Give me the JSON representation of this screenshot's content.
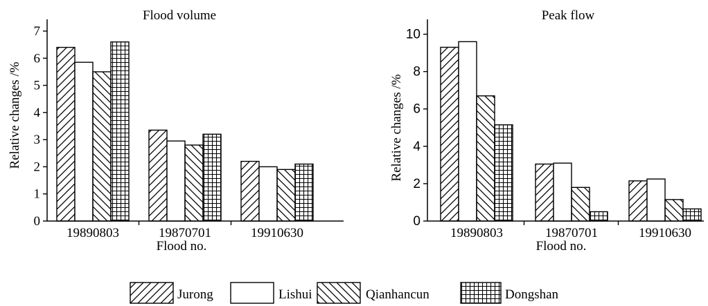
{
  "chart_data": [
    {
      "type": "bar",
      "title": "Flood volume",
      "xlabel": "Flood no.",
      "ylabel": "Relative changes /%",
      "categories": [
        "19890803",
        "19870701",
        "19910630"
      ],
      "ylim": [
        0,
        7
      ],
      "yticks": [
        "0",
        "1",
        "2",
        "3",
        "4",
        "5",
        "6",
        "7"
      ],
      "series": [
        {
          "name": "Jurong",
          "values": [
            6.4,
            3.35,
            2.2
          ]
        },
        {
          "name": "Lishui",
          "values": [
            5.85,
            2.95,
            2.0
          ]
        },
        {
          "name": "Qianhancun",
          "values": [
            5.5,
            2.8,
            1.9
          ]
        },
        {
          "name": "Dongshan",
          "values": [
            6.6,
            3.2,
            2.1
          ]
        }
      ]
    },
    {
      "type": "bar",
      "title": "Peak flow",
      "xlabel": "Flood no.",
      "ylabel": "Relative changes /%",
      "categories": [
        "19890803",
        "19870701",
        "19910630"
      ],
      "ylim": [
        0,
        10.5
      ],
      "yticks": [
        "0",
        "2",
        "4",
        "6",
        "8",
        "10"
      ],
      "series": [
        {
          "name": "Jurong",
          "values": [
            9.3,
            3.05,
            2.15
          ]
        },
        {
          "name": "Lishui",
          "values": [
            9.6,
            3.1,
            2.25
          ]
        },
        {
          "name": "Qianhancun",
          "values": [
            6.7,
            1.8,
            1.15
          ]
        },
        {
          "name": "Dongshan",
          "values": [
            5.15,
            0.5,
            0.65
          ]
        }
      ]
    }
  ],
  "legend": {
    "position": "bottom-center",
    "items": [
      {
        "name": "Jurong",
        "pattern": "diag-up"
      },
      {
        "name": "Lishui",
        "pattern": "blank"
      },
      {
        "name": "Qianhancun",
        "pattern": "diag-down"
      },
      {
        "name": "Dongshan",
        "pattern": "grid"
      }
    ]
  }
}
